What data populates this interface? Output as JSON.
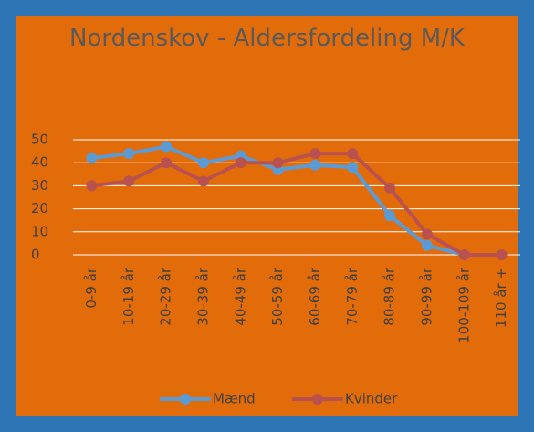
{
  "chart_data": {
    "type": "line",
    "title": "Nordenskov - Aldersfordeling M/K",
    "categories": [
      "0-9 år",
      "10-19 år",
      "20-29 år",
      "30-39 år",
      "40-49 år",
      "50-59 år",
      "60-69 år",
      "70-79 år",
      "80-89 år",
      "90-99 år",
      "100-109 år",
      "110 år +"
    ],
    "series": [
      {
        "name": "Mænd",
        "color": "#5b9bd5",
        "values": [
          42,
          44,
          47,
          40,
          43,
          37,
          39,
          38,
          17,
          4,
          0,
          null
        ]
      },
      {
        "name": "Kvinder",
        "color": "#b9514f",
        "values": [
          30,
          32,
          40,
          32,
          40,
          40,
          44,
          44,
          29,
          9,
          0,
          0
        ]
      }
    ],
    "ylim": [
      0,
      50
    ],
    "yticks": [
      0,
      10,
      20,
      30,
      40,
      50
    ],
    "grid": true,
    "legend": "bottom"
  }
}
